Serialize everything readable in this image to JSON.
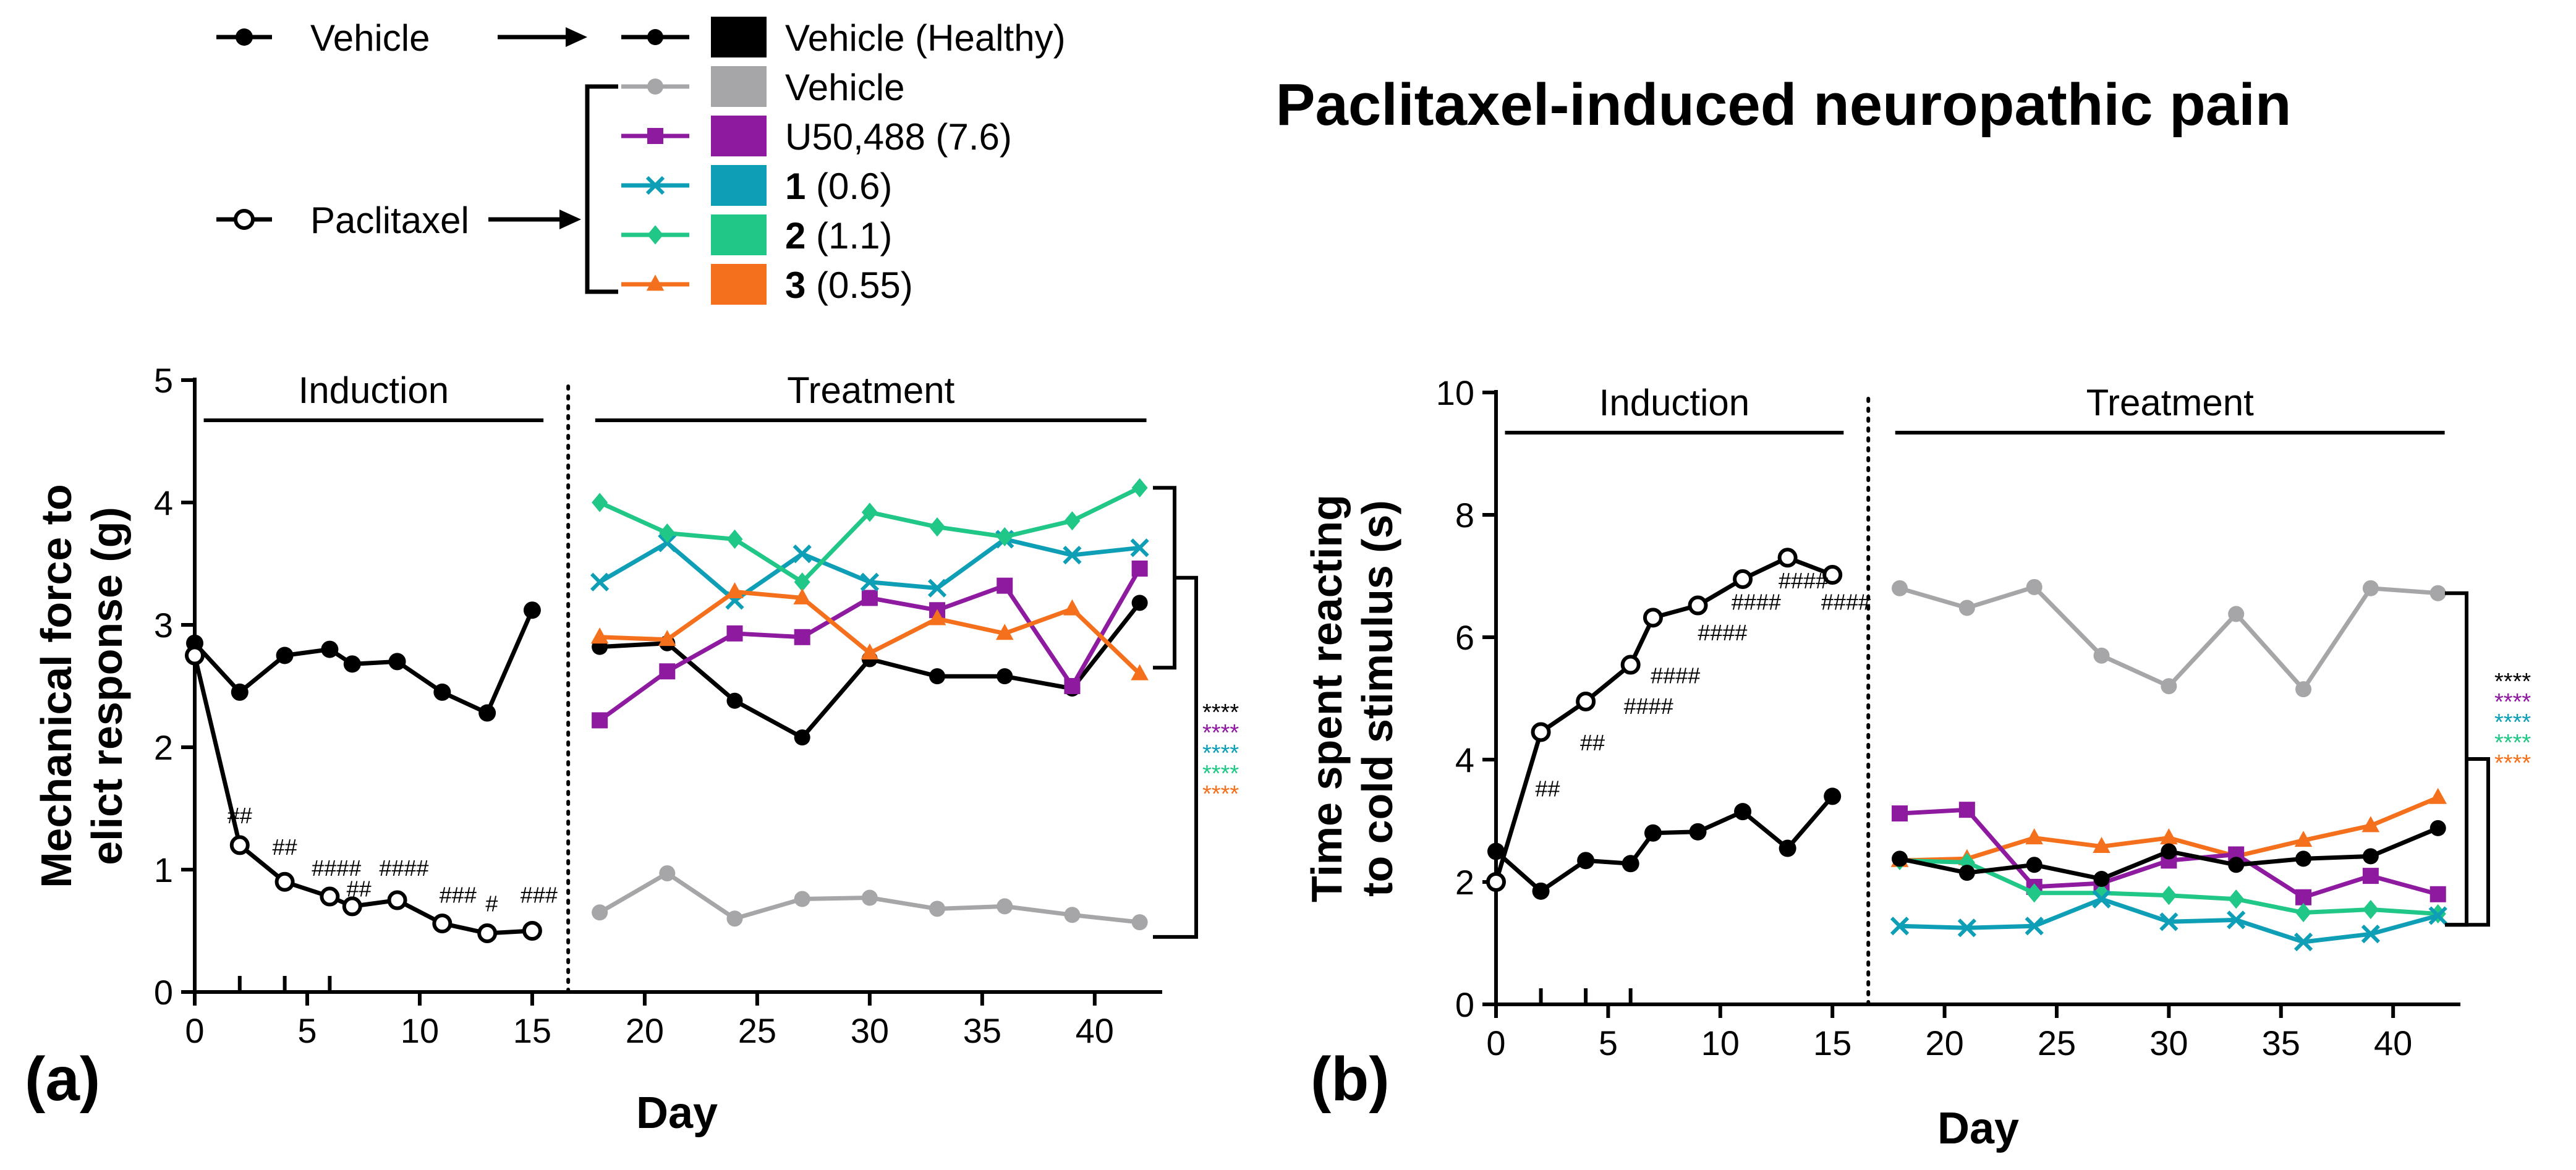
{
  "title": "Paclitaxel-induced neuropathic pain",
  "legend": {
    "vehicle_label": "Vehicle",
    "paclitaxel_label": "Paclitaxel",
    "entries": [
      {
        "bold": "",
        "label": "Vehicle (Healthy)",
        "color": "#000000",
        "marker": "filled-circle"
      },
      {
        "bold": "",
        "label": "Vehicle",
        "color": "#a6a6a8",
        "marker": "circle"
      },
      {
        "bold": "",
        "label": "U50,488 (7.6)",
        "color": "#8e1aa0",
        "marker": "square"
      },
      {
        "bold": "1",
        "label": " (0.6)",
        "color": "#0e9fb7",
        "marker": "x"
      },
      {
        "bold": "2",
        "label": " (1.1)",
        "color": "#20c786",
        "marker": "diamond"
      },
      {
        "bold": "3",
        "label": " (0.55)",
        "color": "#f5701c",
        "marker": "triangle"
      }
    ]
  },
  "chart_data": [
    {
      "type": "line",
      "panel_label": "(a)",
      "title": "Paclitaxel-induced neuropathic pain",
      "xlabel": "Day",
      "ylabel_line1": "Mechanical force to",
      "ylabel_line2": "elict response (g)",
      "xlim": [
        0,
        43
      ],
      "ylim": [
        0,
        5
      ],
      "xticks": [
        0,
        5,
        10,
        15,
        20,
        25,
        30,
        35,
        40
      ],
      "yticks": [
        0,
        1,
        2,
        3,
        4,
        5
      ],
      "phase_induction": "Induction",
      "phase_treatment": "Treatment",
      "induction_days": [
        2,
        4,
        6
      ],
      "induction": {
        "x": [
          0,
          2,
          4,
          6,
          7,
          9,
          11,
          13,
          15
        ],
        "vehicle": [
          2.85,
          2.45,
          2.75,
          2.8,
          2.68,
          2.7,
          2.45,
          2.28,
          3.12
        ],
        "paclitaxel": [
          2.75,
          1.2,
          0.9,
          0.78,
          0.7,
          0.75,
          0.56,
          0.48,
          0.5
        ],
        "significance": [
          {
            "x": 2,
            "y": 1.38,
            "text": "##"
          },
          {
            "x": 4,
            "y": 1.12,
            "text": "##"
          },
          {
            "x": 6.3,
            "y": 0.95,
            "text": "####"
          },
          {
            "x": 7.3,
            "y": 0.78,
            "text": "##"
          },
          {
            "x": 9.3,
            "y": 0.95,
            "text": "####"
          },
          {
            "x": 11.7,
            "y": 0.73,
            "text": "###"
          },
          {
            "x": 13.2,
            "y": 0.66,
            "text": "#"
          },
          {
            "x": 15.3,
            "y": 0.73,
            "text": "###"
          }
        ]
      },
      "treatment": {
        "x": [
          18,
          21,
          24,
          27,
          30,
          33,
          36,
          39,
          42
        ],
        "series": [
          {
            "name": "Vehicle (Healthy)",
            "color": "#000000",
            "marker": "filled-circle",
            "values": [
              2.82,
              2.85,
              2.38,
              2.08,
              2.72,
              2.58,
              2.58,
              2.48,
              3.18
            ]
          },
          {
            "name": "Vehicle",
            "color": "#a6a6a8",
            "marker": "circle",
            "values": [
              0.65,
              0.97,
              0.6,
              0.76,
              0.77,
              0.68,
              0.7,
              0.63,
              0.57
            ]
          },
          {
            "name": "U50,488 (7.6)",
            "color": "#8e1aa0",
            "marker": "square",
            "values": [
              2.22,
              2.62,
              2.93,
              2.9,
              3.22,
              3.12,
              3.32,
              2.5,
              3.46
            ]
          },
          {
            "name": "1 (0.6)",
            "color": "#0e9fb7",
            "marker": "x",
            "values": [
              3.35,
              3.67,
              3.2,
              3.58,
              3.35,
              3.3,
              3.7,
              3.57,
              3.63
            ]
          },
          {
            "name": "2 (1.1)",
            "color": "#20c786",
            "marker": "diamond",
            "values": [
              4.0,
              3.75,
              3.7,
              3.35,
              3.92,
              3.8,
              3.72,
              3.85,
              4.12
            ]
          },
          {
            "name": "3 (0.55)",
            "color": "#f5701c",
            "marker": "triangle",
            "values": [
              2.9,
              2.88,
              3.27,
              3.22,
              2.77,
              3.05,
              2.93,
              3.13,
              2.6
            ]
          }
        ]
      },
      "brackets": {
        "top": [
          4.12,
          2.65
        ],
        "outer": [
          3.4,
          0.45
        ]
      },
      "stars": [
        {
          "text": "****",
          "color": "#000000"
        },
        {
          "text": "****",
          "color": "#8e1aa0"
        },
        {
          "text": "****",
          "color": "#0e9fb7"
        },
        {
          "text": "****",
          "color": "#20c786"
        },
        {
          "text": "****",
          "color": "#f5701c"
        }
      ]
    },
    {
      "type": "line",
      "panel_label": "(b)",
      "title": "Paclitaxel-induced neuropathic pain",
      "xlabel": "Day",
      "ylabel_line1": "Time spent reacting",
      "ylabel_line2": "to cold stimulus (s)",
      "xlim": [
        0,
        43
      ],
      "ylim": [
        0,
        10
      ],
      "xticks": [
        0,
        5,
        10,
        15,
        20,
        25,
        30,
        35,
        40
      ],
      "yticks": [
        0,
        2,
        4,
        6,
        8,
        10
      ],
      "phase_induction": "Induction",
      "phase_treatment": "Treatment",
      "induction_days": [
        2,
        4,
        6
      ],
      "induction": {
        "x": [
          0,
          2,
          4,
          6,
          7,
          9,
          11,
          13,
          15
        ],
        "vehicle": [
          2.5,
          1.85,
          2.35,
          2.3,
          2.8,
          2.82,
          3.15,
          2.55,
          3.4
        ],
        "paclitaxel": [
          2.0,
          4.45,
          4.95,
          5.55,
          6.32,
          6.52,
          6.95,
          7.3,
          7.02
        ],
        "significance": [
          {
            "x": 2.3,
            "y": 3.4,
            "text": "##"
          },
          {
            "x": 4.3,
            "y": 4.15,
            "text": "##"
          },
          {
            "x": 6.8,
            "y": 4.75,
            "text": "####"
          },
          {
            "x": 8.0,
            "y": 5.25,
            "text": "####"
          },
          {
            "x": 10.1,
            "y": 5.95,
            "text": "####"
          },
          {
            "x": 11.6,
            "y": 6.45,
            "text": "####"
          },
          {
            "x": 13.7,
            "y": 6.8,
            "text": "####"
          },
          {
            "x": 15.6,
            "y": 6.45,
            "text": "####"
          }
        ]
      },
      "treatment": {
        "x": [
          18,
          21,
          24,
          27,
          30,
          33,
          36,
          39,
          42
        ],
        "series": [
          {
            "name": "Vehicle",
            "color": "#a6a6a8",
            "marker": "circle",
            "values": [
              6.8,
              6.48,
              6.82,
              5.7,
              5.2,
              6.38,
              5.15,
              6.8,
              6.72
            ]
          },
          {
            "name": "3 (0.55)",
            "color": "#f5701c",
            "marker": "triangle",
            "values": [
              2.35,
              2.38,
              2.72,
              2.58,
              2.72,
              2.42,
              2.68,
              2.92,
              3.38
            ]
          },
          {
            "name": "U50,488 (7.6)",
            "color": "#8e1aa0",
            "marker": "square",
            "values": [
              3.12,
              3.18,
              1.92,
              1.98,
              2.35,
              2.45,
              1.75,
              2.1,
              1.8
            ]
          },
          {
            "name": "2 (1.1)",
            "color": "#20c786",
            "marker": "diamond",
            "values": [
              2.35,
              2.32,
              1.82,
              1.82,
              1.78,
              1.72,
              1.5,
              1.55,
              1.48
            ]
          },
          {
            "name": "1 (0.6)",
            "color": "#0e9fb7",
            "marker": "x",
            "values": [
              1.28,
              1.25,
              1.28,
              1.72,
              1.35,
              1.38,
              1.02,
              1.15,
              1.45
            ]
          },
          {
            "name": "Vehicle (Healthy)",
            "color": "#000000",
            "marker": "filled-circle",
            "values": [
              2.38,
              2.15,
              2.28,
              2.05,
              2.5,
              2.28,
              2.38,
              2.42,
              2.88
            ]
          }
        ]
      },
      "brackets": {
        "top": [
          6.72,
          1.3
        ],
        "outer": [
          3.18,
          1.3
        ]
      },
      "stars": [
        {
          "text": "****",
          "color": "#000000"
        },
        {
          "text": "****",
          "color": "#8e1aa0"
        },
        {
          "text": "****",
          "color": "#0e9fb7"
        },
        {
          "text": "****",
          "color": "#20c786"
        },
        {
          "text": "****",
          "color": "#f5701c"
        }
      ]
    }
  ]
}
